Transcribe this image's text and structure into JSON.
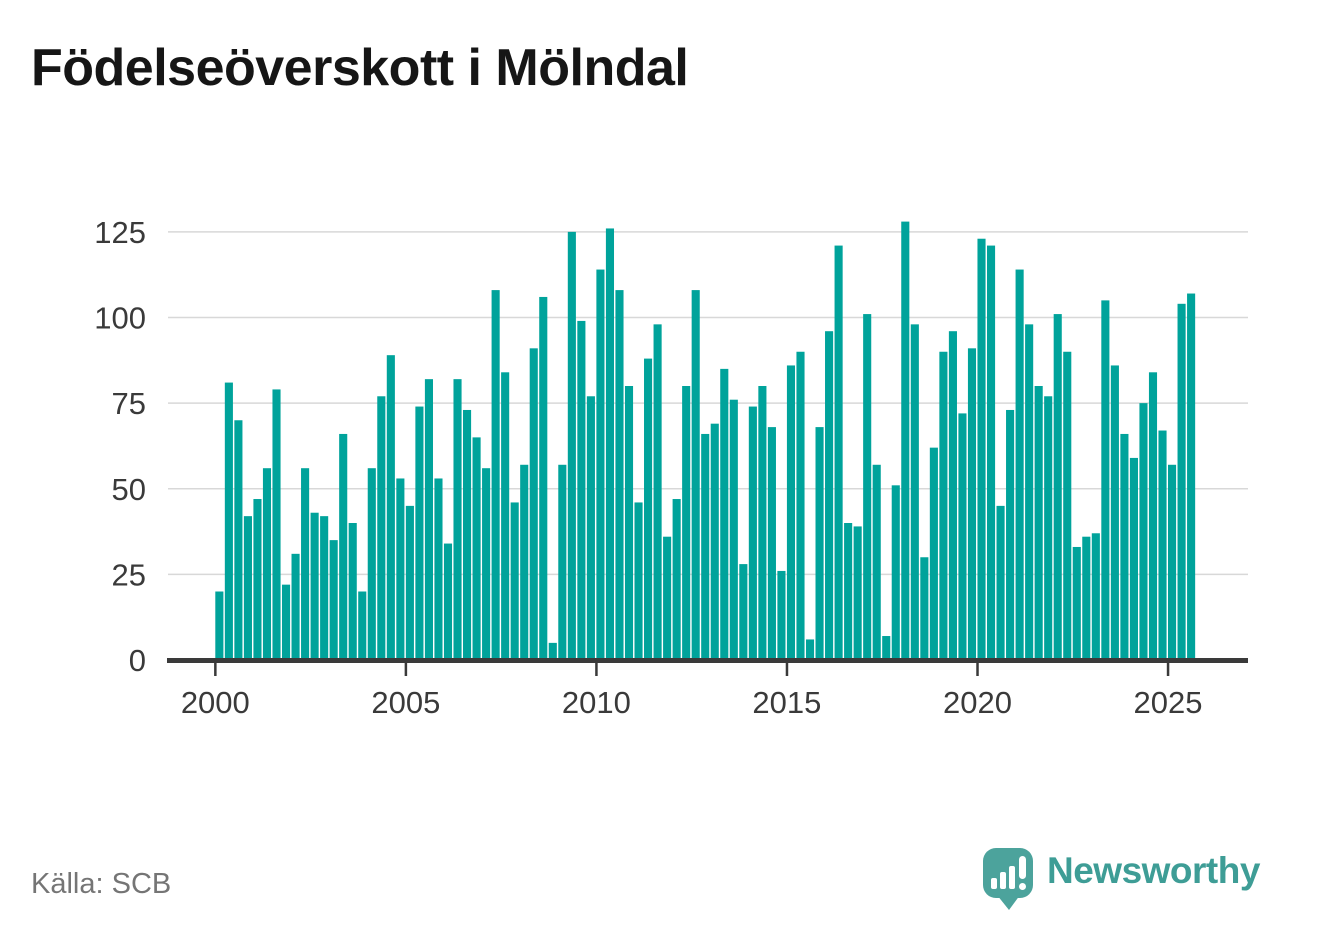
{
  "title": "Födelseöverskott i Mölndal",
  "source": "Källa: SCB",
  "branding": {
    "logo_text": "Newsworthy",
    "logo_icon": "speech-bubble-bar-chart-icon"
  },
  "colors": {
    "bar": "#00a39b",
    "brand_teal": "#3e9d96",
    "logo_bubble": "#4ca39c",
    "axis": "#3a3a3a",
    "grid": "#d8d8d8",
    "tick_text": "#3a3a3a",
    "muted_text": "#757575"
  },
  "chart_data": {
    "type": "bar",
    "title": "Födelseöverskott i Mölndal",
    "granularity": "quarterly",
    "series": [
      {
        "year": 2000,
        "values": [
          20,
          81,
          70,
          42
        ]
      },
      {
        "year": 2001,
        "values": [
          47,
          56,
          79,
          22
        ]
      },
      {
        "year": 2002,
        "values": [
          31,
          56,
          43,
          42
        ]
      },
      {
        "year": 2003,
        "values": [
          35,
          66,
          40,
          20
        ]
      },
      {
        "year": 2004,
        "values": [
          56,
          77,
          89,
          53
        ]
      },
      {
        "year": 2005,
        "values": [
          45,
          74,
          82,
          53
        ]
      },
      {
        "year": 2006,
        "values": [
          34,
          82,
          73,
          65
        ]
      },
      {
        "year": 2007,
        "values": [
          56,
          108,
          84,
          46
        ]
      },
      {
        "year": 2008,
        "values": [
          57,
          91,
          106,
          5
        ]
      },
      {
        "year": 2009,
        "values": [
          57,
          125,
          99,
          77
        ]
      },
      {
        "year": 2010,
        "values": [
          114,
          126,
          108,
          80
        ]
      },
      {
        "year": 2011,
        "values": [
          46,
          88,
          98,
          36
        ]
      },
      {
        "year": 2012,
        "values": [
          47,
          80,
          108,
          66
        ]
      },
      {
        "year": 2013,
        "values": [
          69,
          85,
          76,
          28
        ]
      },
      {
        "year": 2014,
        "values": [
          74,
          80,
          68,
          26
        ]
      },
      {
        "year": 2015,
        "values": [
          86,
          90,
          6,
          68
        ]
      },
      {
        "year": 2016,
        "values": [
          96,
          121,
          40,
          39
        ]
      },
      {
        "year": 2017,
        "values": [
          101,
          57,
          7,
          51
        ]
      },
      {
        "year": 2018,
        "values": [
          128,
          98,
          30,
          62
        ]
      },
      {
        "year": 2019,
        "values": [
          90,
          96,
          72,
          91
        ]
      },
      {
        "year": 2020,
        "values": [
          123,
          121,
          45,
          73
        ]
      },
      {
        "year": 2021,
        "values": [
          114,
          98,
          80,
          77
        ]
      },
      {
        "year": 2022,
        "values": [
          101,
          90,
          33,
          36
        ]
      },
      {
        "year": 2023,
        "values": [
          37,
          105,
          86,
          66
        ]
      },
      {
        "year": 2024,
        "values": [
          59,
          75,
          84,
          67
        ]
      },
      {
        "year": 2025,
        "values": [
          57,
          104,
          107
        ]
      }
    ],
    "y_ticks": [
      0,
      25,
      50,
      75,
      100,
      125
    ],
    "x_tick_labels": [
      "2000",
      "2005",
      "2010",
      "2015",
      "2020",
      "2025"
    ],
    "ylim": [
      0,
      135
    ],
    "grid": true,
    "legend": false
  }
}
